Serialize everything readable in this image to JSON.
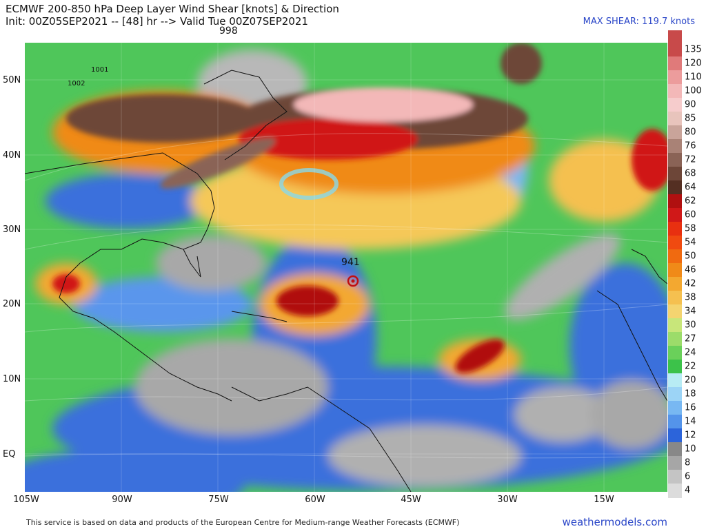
{
  "title": {
    "line1": "ECMWF 200-850 hPa Deep Layer Wind Shear [knots] & Direction",
    "line2": "Init: 00Z05SEP2021 -- [48] hr --> Valid Tue 00Z07SEP2021"
  },
  "max_shear": "MAX SHEAR: 119.7 knots",
  "pressure_labels": {
    "top": "998",
    "storm": "941",
    "low1": "1001",
    "low2": "1002"
  },
  "axes": {
    "lat": [
      "50N",
      "40N",
      "30N",
      "20N",
      "10N",
      "EQ"
    ],
    "lon": [
      "105W",
      "90W",
      "75W",
      "60W",
      "45W",
      "30W",
      "15W"
    ]
  },
  "colorbar": {
    "ticks": [
      "135",
      "120",
      "110",
      "100",
      "90",
      "85",
      "80",
      "76",
      "72",
      "68",
      "64",
      "62",
      "60",
      "58",
      "54",
      "50",
      "46",
      "42",
      "38",
      "34",
      "30",
      "27",
      "24",
      "22",
      "20",
      "18",
      "16",
      "14",
      "12",
      "10",
      "8",
      "6",
      "4"
    ],
    "colors": [
      "#c84a4a",
      "#e07a7a",
      "#ec9c9c",
      "#f3b8b8",
      "#f6cccc",
      "#e8c4bc",
      "#c9a49a",
      "#a98276",
      "#8a6356",
      "#6d4638",
      "#542f22",
      "#b01010",
      "#d01818",
      "#e83010",
      "#f04a10",
      "#f06a10",
      "#f08a18",
      "#f3a830",
      "#f5c050",
      "#f4d470",
      "#c8e67a",
      "#9cdc6a",
      "#6ad05a",
      "#3cc24a",
      "#b8ecf4",
      "#9cd4f6",
      "#78b8f2",
      "#5494ea",
      "#2c64da",
      "#888888",
      "#a6a6a6",
      "#c4c4c4",
      "#dcdcdc"
    ]
  },
  "footer": "This service is based on data and products of the European Centre for Medium-range Weather Forecasts (ECMWF)",
  "brand": "weathermodels.com"
}
